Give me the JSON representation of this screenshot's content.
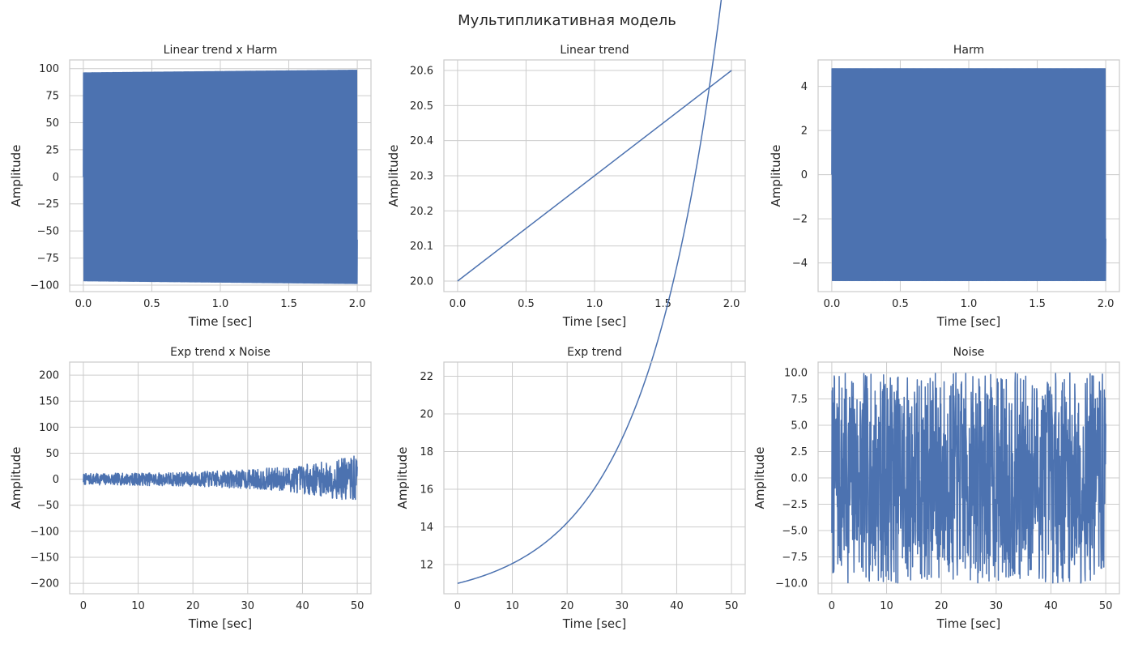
{
  "figure": {
    "suptitle": "Мультипликативная модель"
  },
  "chart_data": [
    {
      "id": "linear-trend-x-harm",
      "type": "line",
      "title": "Linear trend x Harm",
      "xlabel": "Time [sec]",
      "ylabel": "Amplitude",
      "xlim": [
        -0.1,
        2.1
      ],
      "ylim": [
        -106,
        108
      ],
      "xticks": [
        0,
        0.5,
        1,
        1.5,
        2
      ],
      "xtick_labels": [
        "0.0",
        "0.5",
        "1.0",
        "1.5",
        "2.0"
      ],
      "yticks": [
        -100,
        -75,
        -50,
        -25,
        0,
        25,
        50,
        75,
        100
      ],
      "ytick_labels": [
        "−100",
        "−75",
        "−50",
        "−25",
        "0",
        "25",
        "50",
        "75",
        "100"
      ],
      "grid": true,
      "series": [
        {
          "kind": "oscillation",
          "x_start": 0,
          "x_end": 2,
          "cycles": 300,
          "envelope_start": 96,
          "envelope_end": 98.5,
          "start_value": 0,
          "end_value": -58
        }
      ]
    },
    {
      "id": "linear-trend",
      "type": "line",
      "title": "Linear trend",
      "xlabel": "Time [sec]",
      "ylabel": "Amplitude",
      "xlim": [
        -0.1,
        2.1
      ],
      "ylim": [
        19.97,
        20.63
      ],
      "xticks": [
        0,
        0.5,
        1,
        1.5,
        2
      ],
      "xtick_labels": [
        "0.0",
        "0.5",
        "1.0",
        "1.5",
        "2.0"
      ],
      "yticks": [
        20.0,
        20.1,
        20.2,
        20.3,
        20.4,
        20.5,
        20.6
      ],
      "ytick_labels": [
        "20.0",
        "20.1",
        "20.2",
        "20.3",
        "20.4",
        "20.5",
        "20.6"
      ],
      "grid": true,
      "series": [
        {
          "kind": "line",
          "x": [
            0,
            2
          ],
          "y": [
            20.0,
            20.6
          ]
        }
      ]
    },
    {
      "id": "harm",
      "type": "line",
      "title": "Harm",
      "xlabel": "Time [sec]",
      "ylabel": "Amplitude",
      "xlim": [
        -0.1,
        2.1
      ],
      "ylim": [
        -5.3,
        5.2
      ],
      "xticks": [
        0,
        0.5,
        1,
        1.5,
        2
      ],
      "xtick_labels": [
        "0.0",
        "0.5",
        "1.0",
        "1.5",
        "2.0"
      ],
      "yticks": [
        -4,
        -2,
        0,
        2,
        4
      ],
      "ytick_labels": [
        "−4",
        "−2",
        "0",
        "2",
        "4"
      ],
      "grid": true,
      "series": [
        {
          "kind": "oscillation",
          "x_start": 0,
          "x_end": 2,
          "cycles": 300,
          "envelope_start": 4.8,
          "envelope_end": 4.8,
          "start_value": 0,
          "end_value": -2.9
        }
      ]
    },
    {
      "id": "exp-trend-x-noise",
      "type": "line",
      "title": "Exp trend x Noise",
      "xlabel": "Time [sec]",
      "ylabel": "Amplitude",
      "xlim": [
        -2.5,
        52.5
      ],
      "ylim": [
        -220,
        225
      ],
      "xticks": [
        0,
        10,
        20,
        30,
        40,
        50
      ],
      "xtick_labels": [
        "0",
        "10",
        "20",
        "30",
        "40",
        "50"
      ],
      "yticks": [
        -200,
        -150,
        -100,
        -50,
        0,
        50,
        100,
        150,
        200
      ],
      "ytick_labels": [
        "−200",
        "−150",
        "−100",
        "−50",
        "0",
        "50",
        "100",
        "150",
        "200"
      ],
      "grid": true,
      "series": [
        {
          "kind": "noise",
          "x_start": 0,
          "x_end": 50,
          "points": 1000,
          "seed": 7,
          "noise_amplitude": 10,
          "trend": {
            "a": 10,
            "b": 1,
            "c": 0.0144
          }
        }
      ]
    },
    {
      "id": "exp-trend",
      "type": "line",
      "title": "Exp trend",
      "xlabel": "Time [sec]",
      "ylabel": "Amplitude",
      "xlim": [
        -2.5,
        52.5
      ],
      "ylim": [
        10.45,
        22.75
      ],
      "xticks": [
        0,
        10,
        20,
        30,
        40,
        50
      ],
      "xtick_labels": [
        "0",
        "10",
        "20",
        "30",
        "40",
        "50"
      ],
      "yticks": [
        12,
        14,
        16,
        18,
        20,
        22
      ],
      "ytick_labels": [
        "12",
        "14",
        "16",
        "18",
        "20",
        "22"
      ],
      "grid": true,
      "series": [
        {
          "kind": "exp",
          "x_start": 0,
          "x_end": 50,
          "points": 200,
          "trend": {
            "a": 10,
            "b": 1,
            "c": 0.0144
          }
        }
      ]
    },
    {
      "id": "noise",
      "type": "line",
      "title": "Noise",
      "xlabel": "Time [sec]",
      "ylabel": "Amplitude",
      "xlim": [
        -2.5,
        52.5
      ],
      "ylim": [
        -11,
        11
      ],
      "xticks": [
        0,
        10,
        20,
        30,
        40,
        50
      ],
      "xtick_labels": [
        "0",
        "10",
        "20",
        "30",
        "40",
        "50"
      ],
      "yticks": [
        -10,
        -7.5,
        -5,
        -2.5,
        0,
        2.5,
        5,
        7.5,
        10
      ],
      "ytick_labels": [
        "−10.0",
        "−7.5",
        "−5.0",
        "−2.5",
        "0.0",
        "2.5",
        "5.0",
        "7.5",
        "10.0"
      ],
      "grid": true,
      "series": [
        {
          "kind": "noise",
          "x_start": 0,
          "x_end": 50,
          "points": 1000,
          "seed": 7,
          "noise_amplitude": 10
        }
      ]
    }
  ]
}
